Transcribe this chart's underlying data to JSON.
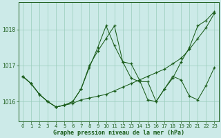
{
  "title": "Graphe pression niveau de la mer (hPa)",
  "bg_color": "#cceae8",
  "grid_color": "#99ccbb",
  "line_color": "#1a5c1a",
  "xlim": [
    -0.5,
    23.5
  ],
  "ylim": [
    1015.45,
    1018.75
  ],
  "yticks": [
    1016,
    1017,
    1018
  ],
  "xticks": [
    0,
    1,
    2,
    3,
    4,
    5,
    6,
    7,
    8,
    9,
    10,
    11,
    12,
    13,
    14,
    15,
    16,
    17,
    18,
    19,
    20,
    21,
    22,
    23
  ],
  "series": [
    [
      1016.7,
      1016.5,
      1016.2,
      1016.0,
      1015.85,
      1015.9,
      1015.95,
      1016.05,
      1016.1,
      1016.15,
      1016.2,
      1016.3,
      1016.4,
      1016.5,
      1016.6,
      1016.7,
      1016.8,
      1016.9,
      1017.05,
      1017.2,
      1017.45,
      1017.75,
      1018.05,
      1018.45
    ],
    [
      1016.7,
      1016.5,
      1016.2,
      1016.0,
      1015.85,
      1015.9,
      1016.0,
      1016.35,
      1016.95,
      1017.5,
      1018.1,
      1017.55,
      1017.1,
      1016.65,
      1016.55,
      1016.55,
      1016.0,
      1016.35,
      1016.7,
      1016.6,
      1016.15,
      1016.05,
      1016.45,
      1016.95
    ],
    [
      1016.7,
      1016.5,
      1016.2,
      1016.0,
      1015.85,
      1015.9,
      1016.0,
      1016.35,
      1017.0,
      1017.4,
      1017.75,
      1018.1,
      1017.1,
      1017.05,
      1016.6,
      1016.05,
      1016.0,
      1016.35,
      1016.65,
      1017.1,
      1017.5,
      1018.1,
      1018.25,
      1018.5
    ]
  ]
}
